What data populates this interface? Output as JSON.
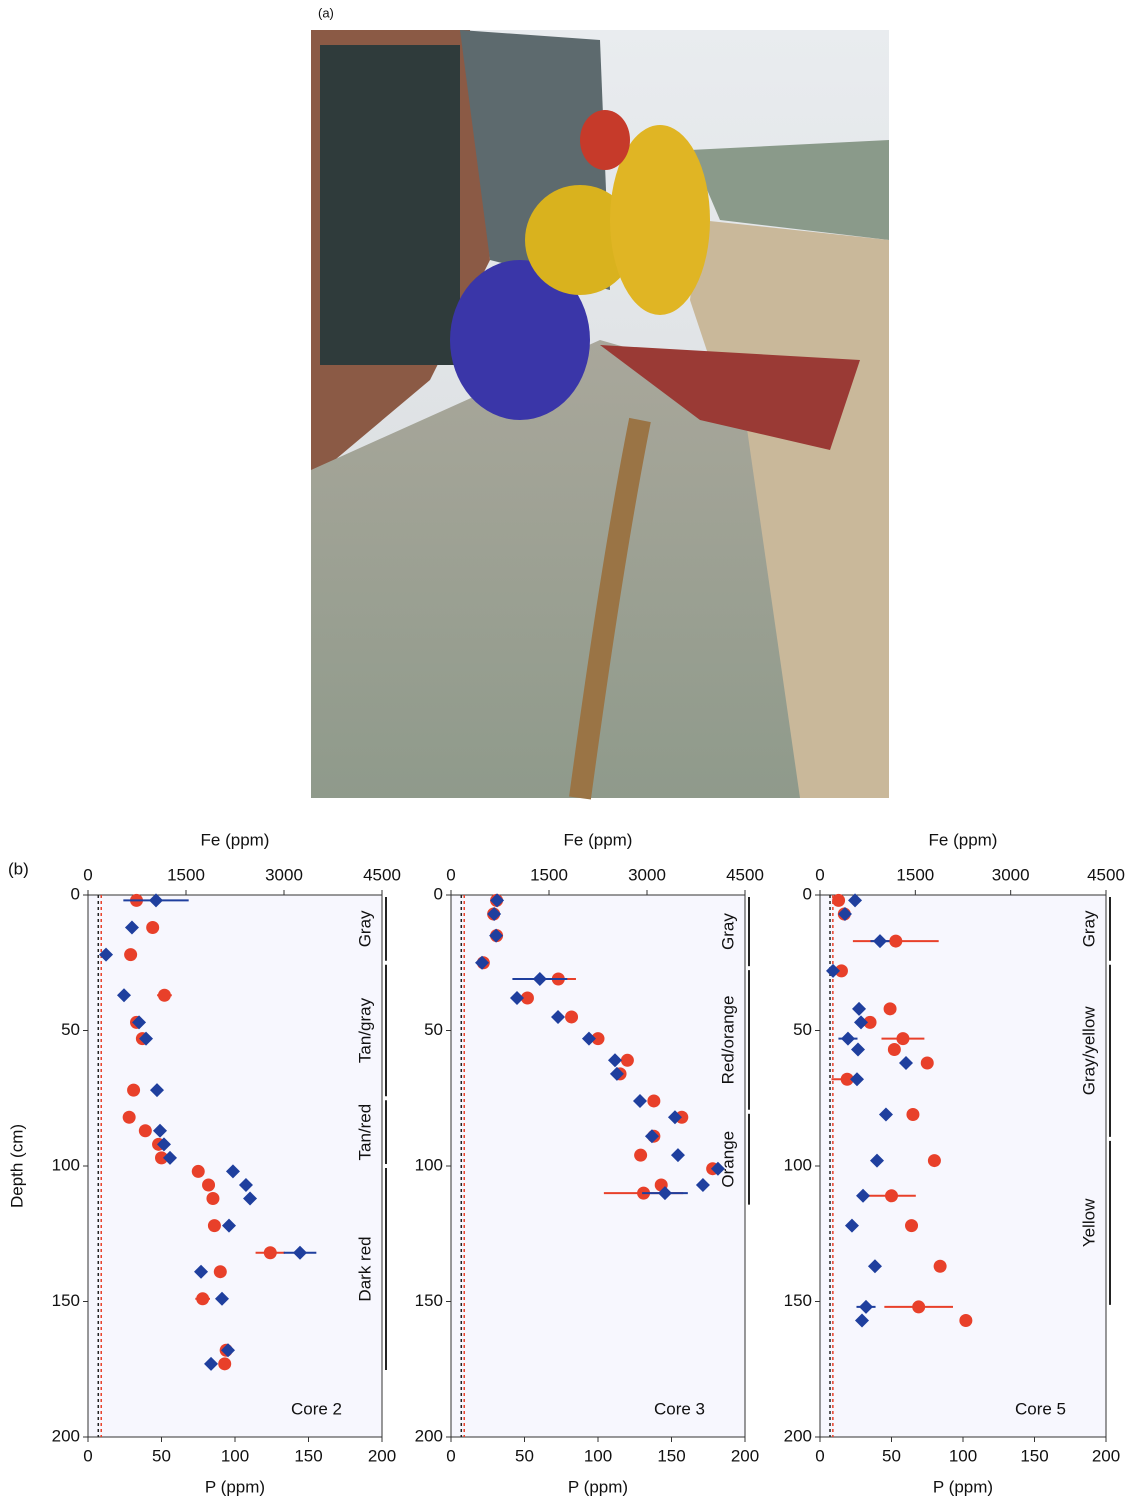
{
  "panel_labels": [
    "(a)",
    "(b)"
  ],
  "chart_data": [
    {
      "type": "scatter",
      "annotation": "Core 2",
      "xlabel": "P (ppm)",
      "x2label": "Fe (ppm)",
      "ylabel": "Depth (cm)",
      "xlim": [
        0,
        200
      ],
      "xticks": [
        0,
        50,
        100,
        150,
        200
      ],
      "x2lim": [
        0,
        4500
      ],
      "x2ticks": [
        0,
        1500,
        3000,
        4500
      ],
      "ylim": [
        0,
        200
      ],
      "yticks": [
        0,
        50,
        100,
        150,
        200
      ],
      "y_inverted": true,
      "reference_lines": [
        {
          "x": 7,
          "color": "#222222"
        },
        {
          "x": 9,
          "color": "#e8402a"
        }
      ],
      "zones": [
        {
          "label": "Gray",
          "from": 0,
          "to": 25
        },
        {
          "label": "Tan/gray",
          "from": 25,
          "to": 75
        },
        {
          "label": "Tan/red",
          "from": 75,
          "to": 100
        },
        {
          "label": "Dark red",
          "from": 100,
          "to": 176
        }
      ],
      "series": [
        {
          "color": "#e8402a",
          "marker": "circle",
          "axis": "x",
          "x": [
            33,
            44,
            29,
            52,
            33,
            37,
            31,
            28,
            39,
            48,
            50,
            75,
            82,
            85,
            86,
            124,
            90,
            78,
            94,
            93
          ],
          "y": [
            2,
            12,
            22,
            37,
            47,
            53,
            72,
            82,
            87,
            92,
            97,
            102,
            107,
            112,
            122,
            132,
            139,
            149,
            168,
            173
          ],
          "xerr": [
            null,
            null,
            null,
            5,
            null,
            null,
            null,
            null,
            null,
            null,
            null,
            null,
            null,
            null,
            null,
            10,
            null,
            5,
            null,
            null
          ]
        },
        {
          "color": "#1f3f9e",
          "marker": "diamond",
          "axis": "x2",
          "x": [
            1041,
            673,
            276,
            551,
            781,
            888,
            1056,
            1102,
            1163,
            1255,
            2219,
            2418,
            2480,
            2158,
            3245,
            1730,
            2051,
            2143,
            1883
          ],
          "y": [
            2,
            12,
            22,
            37,
            47,
            53,
            72,
            87,
            92,
            97,
            102,
            107,
            112,
            122,
            132,
            139,
            149,
            168,
            173
          ],
          "xerr": [
            500,
            null,
            null,
            null,
            null,
            null,
            null,
            null,
            null,
            null,
            null,
            null,
            null,
            null,
            250,
            null,
            null,
            null,
            null
          ]
        }
      ]
    },
    {
      "type": "scatter",
      "annotation": "Core 3",
      "xlabel": "P (ppm)",
      "x2label": "Fe (ppm)",
      "xlim": [
        0,
        200
      ],
      "xticks": [
        0,
        50,
        100,
        150,
        200
      ],
      "x2lim": [
        0,
        4500
      ],
      "x2ticks": [
        0,
        1500,
        3000,
        4500
      ],
      "ylim": [
        0,
        200
      ],
      "yticks": [
        0,
        50,
        100,
        150,
        200
      ],
      "y_inverted": true,
      "reference_lines": [
        {
          "x": 7,
          "color": "#222222"
        },
        {
          "x": 9,
          "color": "#e8402a"
        }
      ],
      "zones": [
        {
          "label": "Gray",
          "from": 0,
          "to": 27
        },
        {
          "label": "Red/orange",
          "from": 27,
          "to": 80
        },
        {
          "label": "Orange",
          "from": 80,
          "to": 115
        }
      ],
      "series": [
        {
          "color": "#e8402a",
          "marker": "circle",
          "axis": "x",
          "x": [
            31,
            29,
            31,
            22,
            73,
            52,
            82,
            100,
            120,
            115,
            138,
            157,
            138,
            129,
            178,
            143,
            131
          ],
          "y": [
            2,
            7,
            15,
            25,
            31,
            38,
            45,
            53,
            61,
            66,
            76,
            82,
            89,
            96,
            101,
            107,
            110
          ],
          "xerr": [
            null,
            null,
            null,
            null,
            12,
            null,
            null,
            null,
            null,
            null,
            null,
            null,
            null,
            null,
            null,
            null,
            27
          ]
        },
        {
          "color": "#1f3f9e",
          "marker": "diamond",
          "axis": "x2",
          "x": [
            705,
            660,
            690,
            475,
            1360,
            1010,
            1638,
            2112,
            2510,
            2540,
            2893,
            3428,
            3076,
            3474,
            4086,
            3856,
            3275
          ],
          "y": [
            2,
            7,
            15,
            25,
            31,
            38,
            45,
            53,
            61,
            66,
            76,
            82,
            89,
            96,
            101,
            107,
            110
          ],
          "xerr": [
            null,
            null,
            null,
            null,
            420,
            null,
            null,
            null,
            null,
            null,
            null,
            null,
            null,
            null,
            null,
            null,
            350
          ]
        }
      ]
    },
    {
      "type": "scatter",
      "annotation": "Core 5",
      "xlabel": "P (ppm)",
      "x2label": "Fe (ppm)",
      "xlim": [
        0,
        200
      ],
      "xticks": [
        0,
        50,
        100,
        150,
        200
      ],
      "x2lim": [
        0,
        4500
      ],
      "x2ticks": [
        0,
        1500,
        3000,
        4500
      ],
      "ylim": [
        0,
        200
      ],
      "yticks": [
        0,
        50,
        100,
        150,
        200
      ],
      "y_inverted": true,
      "reference_lines": [
        {
          "x": 7,
          "color": "#222222"
        },
        {
          "x": 9,
          "color": "#e8402a"
        }
      ],
      "zones": [
        {
          "label": "Gray",
          "from": 0,
          "to": 25
        },
        {
          "label": "Gray/yellow",
          "from": 25,
          "to": 90
        },
        {
          "label": "Yellow",
          "from": 90,
          "to": 152
        }
      ],
      "series": [
        {
          "color": "#e8402a",
          "marker": "circle",
          "axis": "x",
          "x": [
            13,
            17,
            53,
            15,
            49,
            35,
            58,
            52,
            75,
            19,
            65,
            80,
            50,
            64,
            84,
            69,
            102
          ],
          "y": [
            2,
            7,
            17,
            28,
            42,
            47,
            53,
            57,
            62,
            68,
            81,
            98,
            111,
            122,
            137,
            152,
            157
          ],
          "xerr": [
            null,
            null,
            30,
            null,
            null,
            null,
            15,
            null,
            null,
            11,
            null,
            null,
            17,
            null,
            null,
            24,
            null
          ]
        },
        {
          "color": "#1f3f9e",
          "marker": "diamond",
          "axis": "x2",
          "x": [
            551,
            393,
            944,
            205,
            614,
            645,
            440,
            598,
            1353,
            582,
            1038,
            897,
            677,
            503,
            865,
            724,
            661
          ],
          "y": [
            2,
            7,
            17,
            28,
            42,
            47,
            53,
            57,
            62,
            68,
            81,
            98,
            111,
            122,
            137,
            152,
            157
          ],
          "xerr": [
            null,
            null,
            150,
            null,
            null,
            null,
            150,
            null,
            null,
            null,
            null,
            null,
            null,
            null,
            null,
            150,
            null
          ]
        }
      ]
    }
  ]
}
